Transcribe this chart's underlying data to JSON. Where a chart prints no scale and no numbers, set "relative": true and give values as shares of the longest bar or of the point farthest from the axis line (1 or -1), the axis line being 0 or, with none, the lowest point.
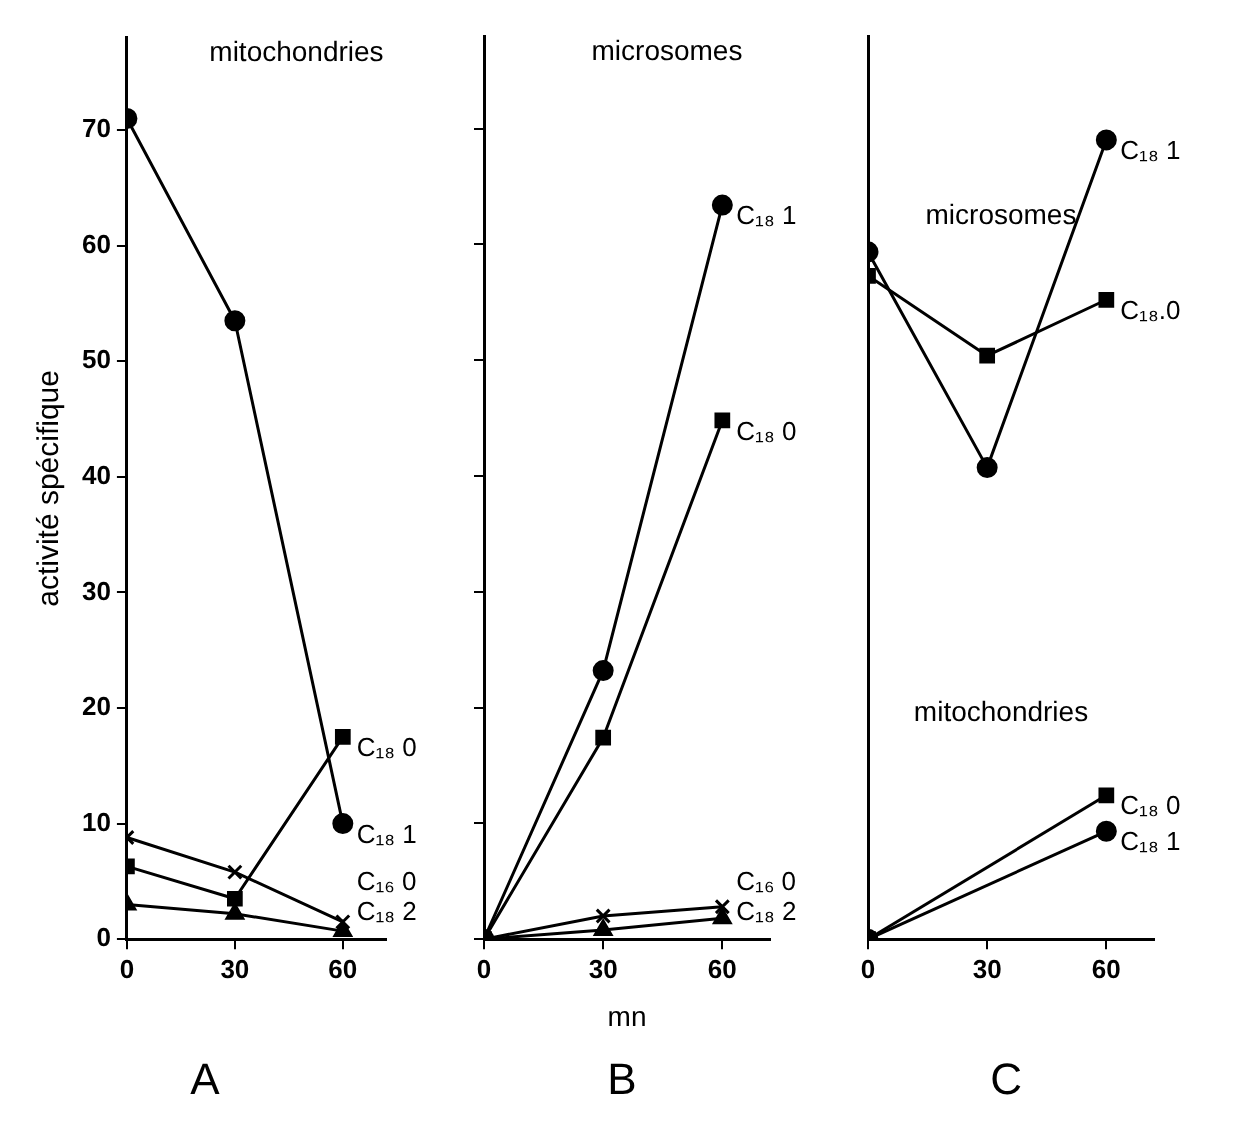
{
  "chart_data": [
    {
      "type": "line",
      "title": "A",
      "subtitle": "mitochondries",
      "ylabel": "activité spécifique",
      "x": [
        0,
        30,
        60
      ],
      "xlim": [
        0,
        72
      ],
      "xticks": [
        0,
        30,
        60
      ],
      "ylim": [
        0,
        78
      ],
      "yticks": [
        0,
        10,
        20,
        30,
        40,
        50,
        60,
        70
      ],
      "grid": false,
      "legend": false,
      "series": [
        {
          "name": "C₁₈ 1",
          "color": "#000000",
          "marker": "circle",
          "values": [
            71,
            53.5,
            10
          ]
        },
        {
          "name": "C₁₈ 0",
          "color": "#000000",
          "marker": "square",
          "values": [
            6.3,
            3.5,
            17.5
          ]
        },
        {
          "name": "C₁₆ 0",
          "color": "#000000",
          "marker": "cross",
          "values": [
            8.8,
            5.8,
            1.5
          ]
        },
        {
          "name": "C₁₈ 2",
          "color": "#000000",
          "marker": "triangle",
          "values": [
            3,
            2.2,
            0.7
          ]
        }
      ]
    },
    {
      "type": "line",
      "title": "B",
      "subtitle": "microsomes",
      "xlabel": "mn",
      "x": [
        0,
        30,
        60
      ],
      "xlim": [
        0,
        72
      ],
      "xticks": [
        0,
        30,
        60
      ],
      "ylim": [
        0,
        78
      ],
      "yticks": [
        0,
        10,
        20,
        30,
        40,
        50,
        60,
        70
      ],
      "tick_labels": "x",
      "grid": false,
      "legend": false,
      "series": [
        {
          "name": "C₁₈ 1",
          "color": "#000000",
          "marker": "circle",
          "values": [
            0,
            23.2,
            63.4
          ]
        },
        {
          "name": "C₁₈ 0",
          "color": "#000000",
          "marker": "square",
          "values": [
            0,
            17.4,
            44.8
          ]
        },
        {
          "name": "C₁₆ 0",
          "color": "#000000",
          "marker": "cross",
          "values": [
            0,
            2,
            2.8
          ]
        },
        {
          "name": "C₁₈ 2",
          "color": "#000000",
          "marker": "triangle",
          "values": [
            0,
            0.8,
            1.8
          ]
        }
      ]
    },
    {
      "type": "line",
      "title": "C",
      "relative": true,
      "x": [
        0,
        30,
        60
      ],
      "xlim": [
        0,
        72
      ],
      "xticks": [
        0,
        30,
        60
      ],
      "tick_labels": "x",
      "grid": false,
      "legend": false,
      "annotations": [
        "microsomes",
        "mitochondries"
      ],
      "series": [
        {
          "name": "C₁₈ 1",
          "color": "#000000",
          "marker": "circle",
          "values": [
            0.86,
            0.59,
            1
          ]
        },
        {
          "name": "C₁₈.0",
          "color": "#000000",
          "marker": "square",
          "values": [
            0.83,
            0.73,
            0.8
          ]
        },
        {
          "name": "C₁₈ 0",
          "color": "#000000",
          "marker": "square",
          "values": [
            0,
            null,
            0.18
          ]
        },
        {
          "name": "C₁₈ 1",
          "color": "#000000",
          "marker": "circle",
          "values": [
            0,
            null,
            0.135
          ]
        }
      ]
    }
  ]
}
